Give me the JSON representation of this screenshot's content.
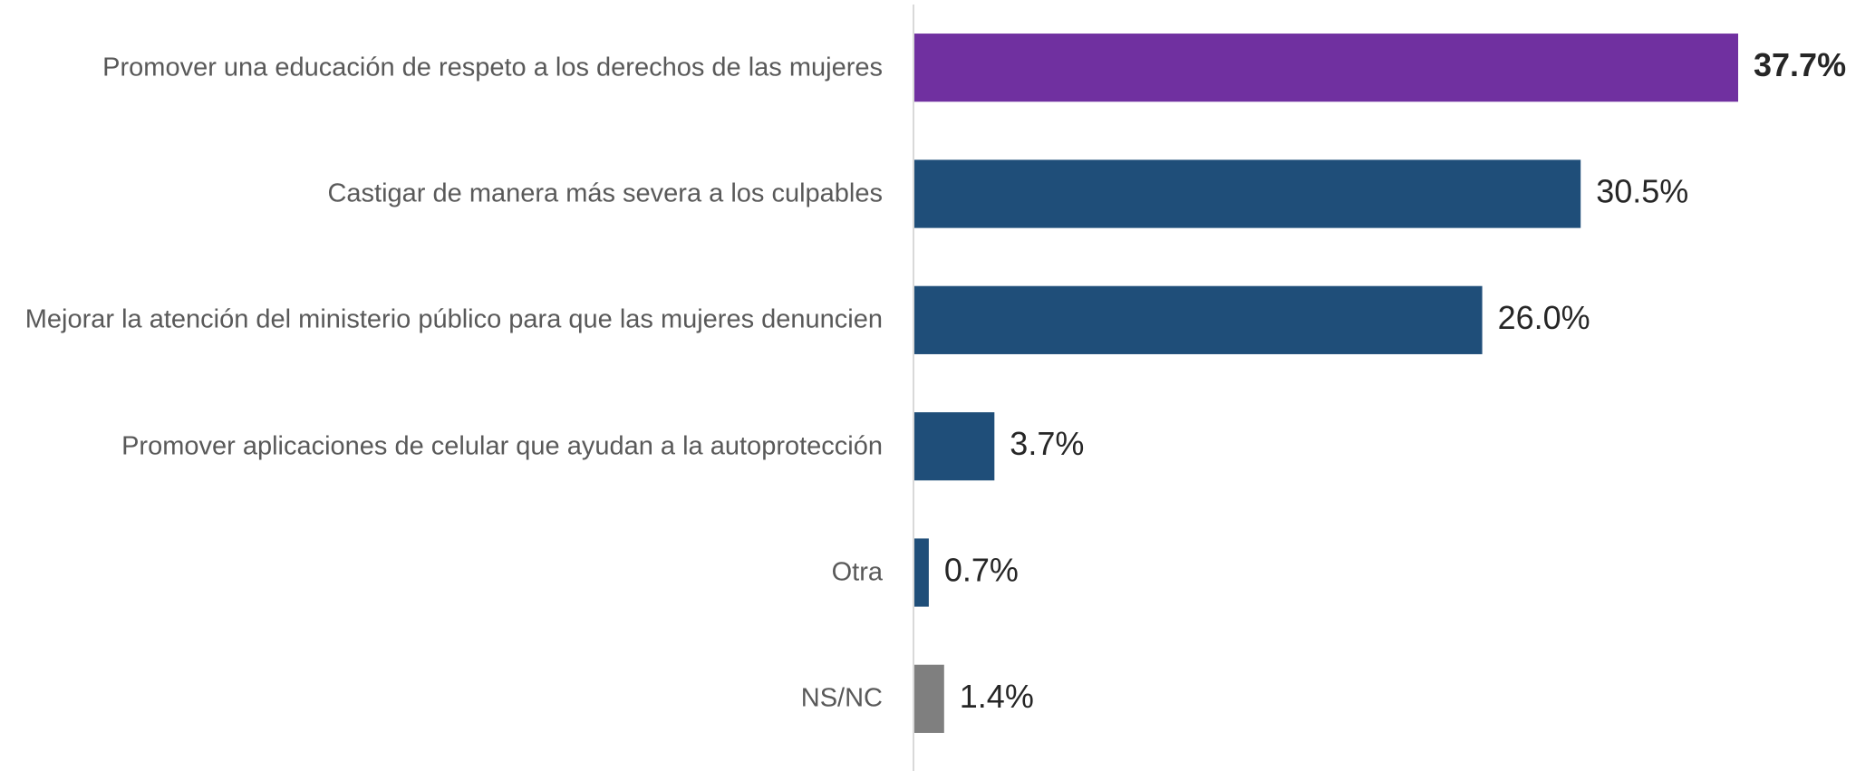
{
  "chart_data": {
    "type": "bar",
    "orientation": "horizontal",
    "categories": [
      "Promover una educación de respeto a los derechos de las mujeres",
      "Castigar de manera más severa a los culpables",
      "Mejorar la atención del ministerio público para que las mujeres denuncien",
      "Promover aplicaciones de celular que ayudan a la autoprotección",
      "Otra",
      "NS/NC"
    ],
    "values": [
      37.7,
      30.5,
      26.0,
      3.7,
      0.7,
      1.4
    ],
    "value_labels": [
      "37.7%",
      "30.5%",
      "26.0%",
      "3.7%",
      "0.7%",
      "1.4%"
    ],
    "colors": [
      "#7030a0",
      "#1f4e79",
      "#1f4e79",
      "#1f4e79",
      "#1f4e79",
      "#7f7f7f"
    ],
    "value_label_bold": [
      true,
      false,
      false,
      false,
      false,
      false
    ]
  }
}
